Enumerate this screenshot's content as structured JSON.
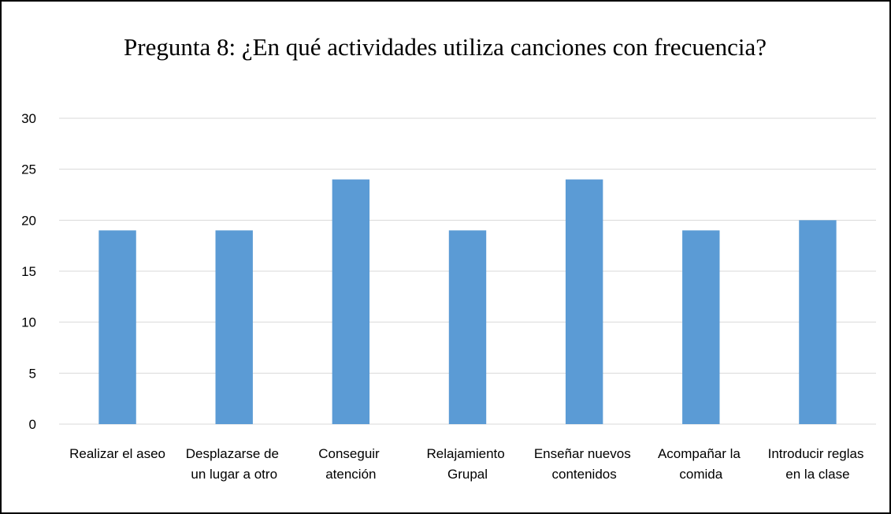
{
  "chart_data": {
    "type": "bar",
    "title": "Pregunta 8: ¿En qué actividades utiliza canciones con frecuencia?",
    "categories": [
      "Realizar el aseo",
      "Desplazarse de un lugar a otro",
      "Conseguir atención",
      "Relajamiento Grupal",
      "Enseñar nuevos contenidos",
      "Acompañar la comida",
      "Introducir reglas en la clase"
    ],
    "values": [
      19,
      19,
      24,
      19,
      24,
      19,
      20
    ],
    "color": "#5b9bd5",
    "ylim": [
      0,
      30
    ],
    "yticks": [
      0,
      5,
      10,
      15,
      20,
      25,
      30
    ],
    "grid": true
  }
}
